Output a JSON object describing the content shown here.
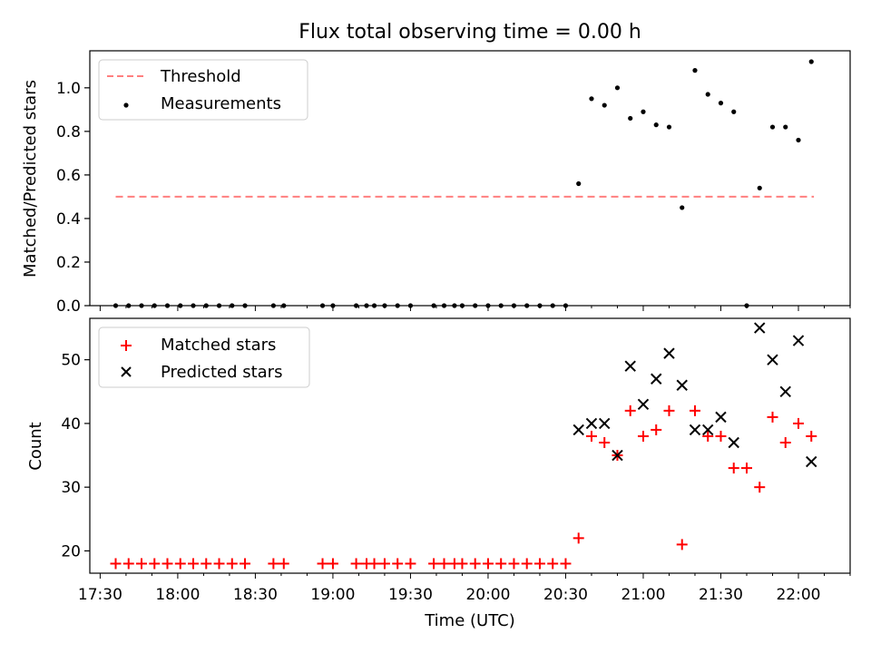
{
  "chart_data": [
    {
      "type": "scatter",
      "title": "Flux total observing time = 0.00 h",
      "xlabel": "",
      "ylabel": "Matched/Predicted stars",
      "x_unit": "time (UTC)",
      "xlim": [
        "17:26",
        "22:20"
      ],
      "ylim": [
        0,
        1.17
      ],
      "yticks": [
        0.0,
        0.2,
        0.4,
        0.6,
        0.8,
        1.0
      ],
      "yticklabels": [
        "0.0",
        "0.2",
        "0.4",
        "0.6",
        "0.8",
        "1.0"
      ],
      "legend_placement": "top-left",
      "grid": false,
      "series": [
        {
          "name": "Threshold",
          "style": "dashed-line",
          "color": "#ff7f7f",
          "x": [
            "17:36",
            "22:06"
          ],
          "y": [
            0.5,
            0.5
          ]
        },
        {
          "name": "Measurements",
          "style": "dot",
          "color": "#000000",
          "x": [
            "17:36",
            "17:41",
            "17:46",
            "17:51",
            "17:56",
            "18:01",
            "18:06",
            "18:11",
            "18:16",
            "18:21",
            "18:26",
            "18:37",
            "18:41",
            "18:56",
            "19:00",
            "19:09",
            "19:13",
            "19:16",
            "19:20",
            "19:25",
            "19:30",
            "19:39",
            "19:43",
            "19:47",
            "19:50",
            "19:55",
            "20:00",
            "20:05",
            "20:10",
            "20:15",
            "20:20",
            "20:25",
            "20:30",
            "20:35",
            "20:40",
            "20:45",
            "20:50",
            "20:55",
            "21:00",
            "21:05",
            "21:10",
            "21:15",
            "21:20",
            "21:25",
            "21:30",
            "21:35",
            "21:40",
            "21:45",
            "21:50",
            "21:55",
            "22:00",
            "22:05"
          ],
          "y": [
            0,
            0,
            0,
            0,
            0,
            0,
            0,
            0,
            0,
            0,
            0,
            0,
            0,
            0,
            0,
            0,
            0,
            0,
            0,
            0,
            0,
            0,
            0,
            0,
            0,
            0,
            0,
            0,
            0,
            0,
            0,
            0,
            0,
            0.56,
            0.95,
            0.92,
            1.0,
            0.86,
            0.89,
            0.83,
            0.82,
            0.45,
            1.08,
            0.97,
            0.93,
            0.89,
            0.0,
            0.54,
            0.82,
            0.82,
            0.76,
            1.12
          ]
        }
      ]
    },
    {
      "type": "scatter",
      "title": "",
      "xlabel": "Time (UTC)",
      "ylabel": "Count",
      "xlim": [
        "17:26",
        "22:20"
      ],
      "ylim": [
        16.5,
        56.5
      ],
      "xticklabels": [
        "17:30",
        "18:00",
        "18:30",
        "19:00",
        "19:30",
        "20:00",
        "20:30",
        "21:00",
        "21:30",
        "22:00"
      ],
      "yticks": [
        20,
        30,
        40,
        50
      ],
      "yticklabels": [
        "20",
        "30",
        "40",
        "50"
      ],
      "legend_placement": "top-left",
      "grid": false,
      "series": [
        {
          "name": "Matched stars",
          "style": "plus",
          "color": "#ff0000",
          "x": [
            "17:36",
            "17:41",
            "17:46",
            "17:51",
            "17:56",
            "18:01",
            "18:06",
            "18:11",
            "18:16",
            "18:21",
            "18:26",
            "18:37",
            "18:41",
            "18:56",
            "19:00",
            "19:09",
            "19:13",
            "19:16",
            "19:20",
            "19:25",
            "19:30",
            "19:39",
            "19:43",
            "19:47",
            "19:50",
            "19:55",
            "20:00",
            "20:05",
            "20:10",
            "20:15",
            "20:20",
            "20:25",
            "20:30",
            "20:35",
            "20:40",
            "20:45",
            "20:50",
            "20:55",
            "21:00",
            "21:05",
            "21:10",
            "21:15",
            "21:20",
            "21:25",
            "21:30",
            "21:35",
            "21:40",
            "21:45",
            "21:50",
            "21:55",
            "22:00",
            "22:05"
          ],
          "y": [
            18,
            18,
            18,
            18,
            18,
            18,
            18,
            18,
            18,
            18,
            18,
            18,
            18,
            18,
            18,
            18,
            18,
            18,
            18,
            18,
            18,
            18,
            18,
            18,
            18,
            18,
            18,
            18,
            18,
            18,
            18,
            18,
            18,
            22,
            38,
            37,
            35,
            42,
            38,
            39,
            42,
            21,
            42,
            38,
            38,
            33,
            33,
            30,
            41,
            37,
            40,
            38
          ]
        },
        {
          "name": "Predicted stars",
          "style": "x",
          "color": "#000000",
          "x": [
            "20:35",
            "20:40",
            "20:45",
            "20:50",
            "20:55",
            "21:00",
            "21:05",
            "21:10",
            "21:15",
            "21:20",
            "21:25",
            "21:30",
            "21:35",
            "21:45",
            "21:50",
            "21:55",
            "22:00",
            "22:05"
          ],
          "y": [
            39,
            40,
            40,
            35,
            49,
            43,
            47,
            51,
            46,
            39,
            39,
            41,
            37,
            55,
            50,
            45,
            53,
            34
          ]
        }
      ]
    }
  ]
}
